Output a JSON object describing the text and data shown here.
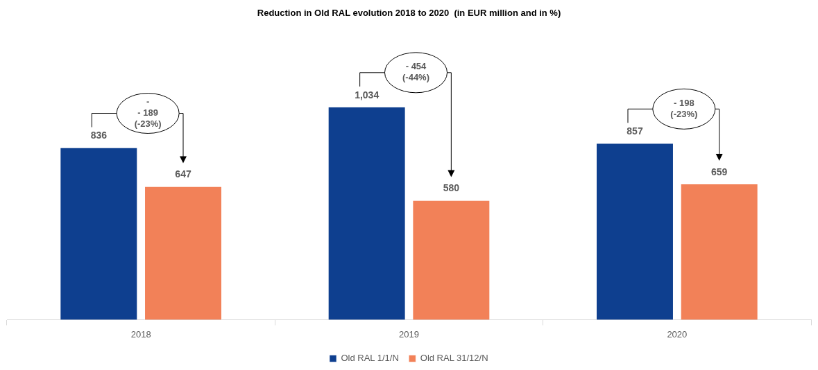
{
  "chart_data": {
    "type": "bar",
    "title": "Reduction in Old RAL evolution 2018 to 2020  (in EUR million and in %)",
    "categories": [
      "2018",
      "2019",
      "2020"
    ],
    "series": [
      {
        "name": "Old RAL 1/1/N",
        "color": "#0e3f8f",
        "values": [
          836,
          1034,
          857
        ],
        "value_labels": [
          "836",
          "1,034",
          "857"
        ]
      },
      {
        "name": "Old RAL 31/12/N",
        "color": "#f28158",
        "values": [
          647,
          580,
          659
        ],
        "value_labels": [
          "647",
          "580",
          "659"
        ]
      }
    ],
    "annotations": [
      "-\n- 189\n(-23%)",
      "- 454\n(-44%)",
      "- 198\n(-23%)"
    ],
    "grid": false,
    "legend": "bottom"
  }
}
